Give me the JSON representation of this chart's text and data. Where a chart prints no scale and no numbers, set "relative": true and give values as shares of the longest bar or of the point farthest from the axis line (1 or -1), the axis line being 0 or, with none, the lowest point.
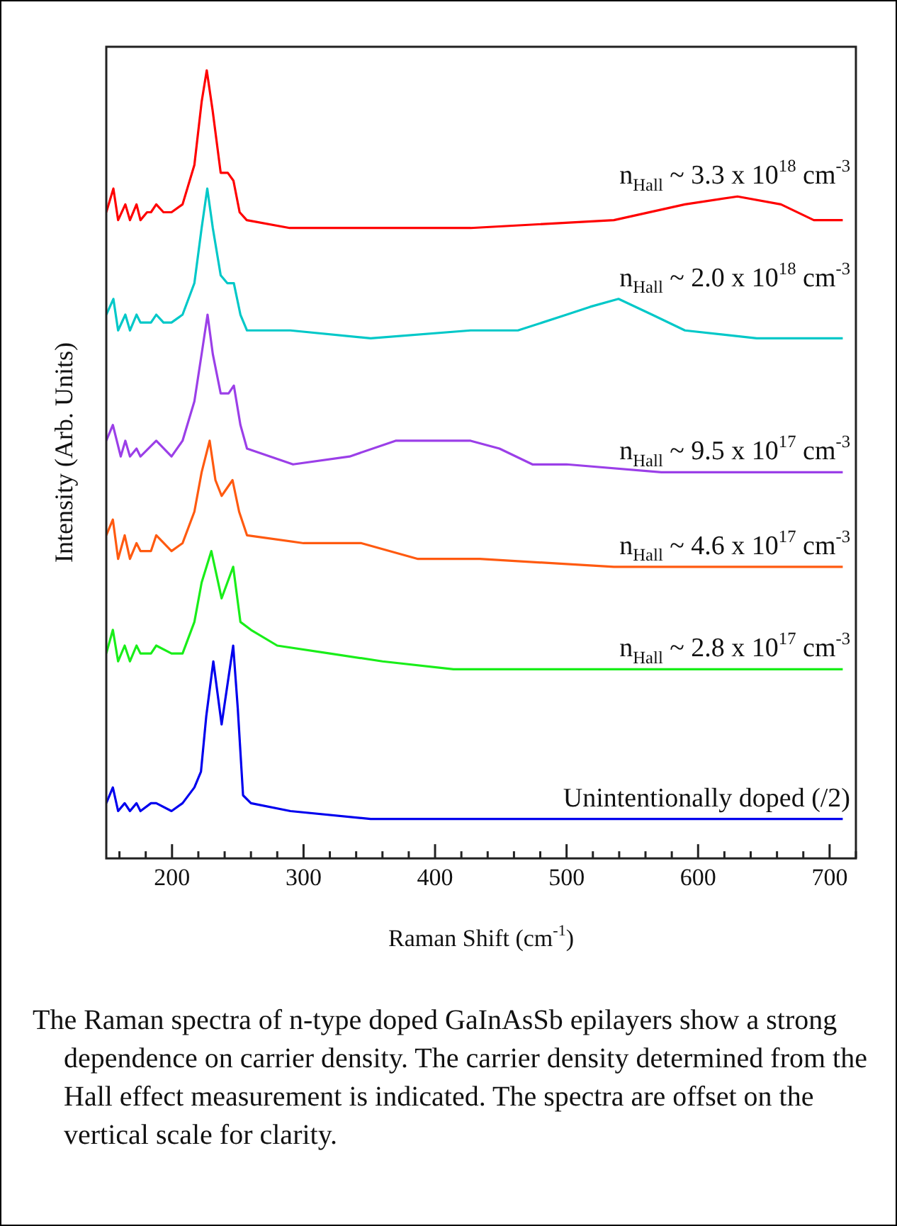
{
  "chart_data": {
    "type": "line",
    "relative": true,
    "xlabel": "Raman Shift (cm$^{-1}$)",
    "ylabel": "Intensity (Arb. Units)",
    "xlim": [
      150,
      720
    ],
    "xticks": [
      {
        "value": 160,
        "label": null
      },
      {
        "value": 180,
        "label": null
      },
      200,
      {
        "value": 220,
        "label": null
      },
      {
        "value": 240,
        "label": null
      },
      {
        "value": 260,
        "label": null
      },
      {
        "value": 280,
        "label": null
      },
      300,
      {
        "value": 320,
        "label": null
      },
      {
        "value": 340,
        "label": null
      },
      {
        "value": 360,
        "label": null
      },
      {
        "value": 380,
        "label": null
      },
      400,
      {
        "value": 420,
        "label": null
      },
      {
        "value": 440,
        "label": null
      },
      {
        "value": 460,
        "label": null
      },
      {
        "value": 480,
        "label": null
      },
      500,
      {
        "value": 520,
        "label": null
      },
      {
        "value": 540,
        "label": null
      },
      {
        "value": 560,
        "label": null
      },
      {
        "value": 580,
        "label": null
      },
      600,
      {
        "value": 620,
        "label": null
      },
      {
        "value": 640,
        "label": null
      },
      {
        "value": 660,
        "label": null
      },
      {
        "value": 680,
        "label": null
      },
      700,
      {
        "value": 720,
        "label": null
      }
    ],
    "marker": "none",
    "line_style": "solid",
    "series": [
      {
        "name": "n$_{Hall}$ ~ 3.3 x 10$^{18}$ cm$^{-3}$",
        "color": "#ff0000",
        "x": [
          150,
          155.4,
          159,
          164.5,
          168,
          173,
          176,
          181,
          184,
          188,
          193.5,
          199.6,
          208,
          217,
          222.5,
          226.4,
          230.8,
          237,
          242.4,
          246.7,
          251.4,
          256.8,
          289.5,
          351,
          427,
          536,
          590,
          630,
          663,
          688,
          710
        ],
        "values": [
          0.82,
          0.85,
          0.81,
          0.83,
          0.81,
          0.83,
          0.81,
          0.82,
          0.82,
          0.83,
          0.82,
          0.82,
          0.83,
          0.88,
          0.96,
          1,
          0.95,
          0.87,
          0.87,
          0.86,
          0.82,
          0.81,
          0.8,
          0.8,
          0.8,
          0.81,
          0.83,
          0.84,
          0.83,
          0.81,
          0.81
        ]
      },
      {
        "name": "n$_{Hall}$ ~ 2.0 x 10$^{18}$ cm$^{-3}$",
        "color": "#00c8c8",
        "x": [
          150,
          155.4,
          159,
          164.5,
          168,
          173,
          176,
          181,
          184,
          188,
          193.5,
          199.6,
          208,
          217,
          222.5,
          226.8,
          231,
          237,
          242,
          247,
          252,
          257,
          290,
          351,
          427,
          463,
          500,
          518,
          539.5,
          565,
          590,
          644.6,
          710
        ],
        "values": [
          0.69,
          0.71,
          0.67,
          0.69,
          0.67,
          0.69,
          0.68,
          0.68,
          0.68,
          0.69,
          0.68,
          0.68,
          0.69,
          0.73,
          0.8,
          0.85,
          0.8,
          0.74,
          0.73,
          0.73,
          0.69,
          0.67,
          0.67,
          0.66,
          0.67,
          0.67,
          0.69,
          0.7,
          0.71,
          0.69,
          0.67,
          0.66,
          0.66
        ]
      },
      {
        "name": "n$_{Hall}$ ~ 9.5 x 10$^{17}$ cm$^{-3}$",
        "color": "#9b3fe8",
        "x": [
          150,
          155,
          161,
          164.5,
          168,
          173,
          176,
          188,
          199.6,
          208,
          217,
          222.5,
          227,
          231,
          237,
          243,
          247,
          252,
          257,
          292,
          335,
          370,
          413,
          427,
          449,
          474,
          500,
          572,
          710
        ],
        "values": [
          0.53,
          0.55,
          0.51,
          0.53,
          0.51,
          0.52,
          0.51,
          0.53,
          0.51,
          0.53,
          0.58,
          0.64,
          0.69,
          0.64,
          0.59,
          0.59,
          0.6,
          0.55,
          0.52,
          0.5,
          0.51,
          0.53,
          0.53,
          0.53,
          0.52,
          0.5,
          0.5,
          0.49,
          0.49
        ]
      },
      {
        "name": "n$_{Hall}$ ~ 4.6 x 10$^{17}$ cm$^{-3}$",
        "color": "#ff5a10",
        "x": [
          150,
          155,
          159,
          164,
          168,
          173,
          176,
          184,
          188,
          199.6,
          208,
          217,
          222.5,
          228.6,
          233,
          237.7,
          246,
          251,
          257,
          300,
          344,
          387,
          434,
          536,
          710
        ],
        "values": [
          0.41,
          0.43,
          0.38,
          0.41,
          0.38,
          0.4,
          0.39,
          0.39,
          0.41,
          0.39,
          0.4,
          0.44,
          0.49,
          0.53,
          0.48,
          0.46,
          0.48,
          0.44,
          0.41,
          0.4,
          0.4,
          0.38,
          0.38,
          0.37,
          0.37
        ]
      },
      {
        "name": "n$_{Hall}$ ~ 2.8 x 10$^{17}$ cm$^{-3}$",
        "color": "#19ee19",
        "x": [
          150,
          155,
          159,
          164,
          168,
          173,
          176,
          184,
          188,
          199.6,
          208,
          217,
          222.5,
          229.9,
          237.7,
          246.5,
          252,
          260,
          280,
          320,
          360,
          414,
          536,
          710
        ],
        "values": [
          0.26,
          0.29,
          0.25,
          0.27,
          0.25,
          0.27,
          0.26,
          0.26,
          0.27,
          0.26,
          0.26,
          0.3,
          0.35,
          0.39,
          0.33,
          0.37,
          0.3,
          0.29,
          0.27,
          0.26,
          0.25,
          0.24,
          0.24,
          0.24
        ]
      },
      {
        "name": "Unintentionally doped (/2)",
        "color": "#0000ee",
        "x": [
          150,
          155,
          159,
          164,
          168,
          173,
          176,
          184,
          188,
          199.6,
          208,
          217,
          222,
          226,
          231.4,
          237.7,
          246.5,
          250,
          254,
          260,
          290,
          351,
          427,
          710
        ],
        "values": [
          0.07,
          0.09,
          0.06,
          0.07,
          0.06,
          0.07,
          0.06,
          0.07,
          0.07,
          0.06,
          0.07,
          0.09,
          0.11,
          0.18,
          0.25,
          0.17,
          0.27,
          0.19,
          0.08,
          0.07,
          0.06,
          0.05,
          0.05,
          0.05
        ]
      }
    ],
    "annotations": [
      "The Raman spectra of n-type doped GaInAsSb epilayers show a strong dependence on carrier density. The carrier density determined from the Hall effect measurement is indicated. The spectra are offset on the vertical scale for clarity."
    ]
  }
}
